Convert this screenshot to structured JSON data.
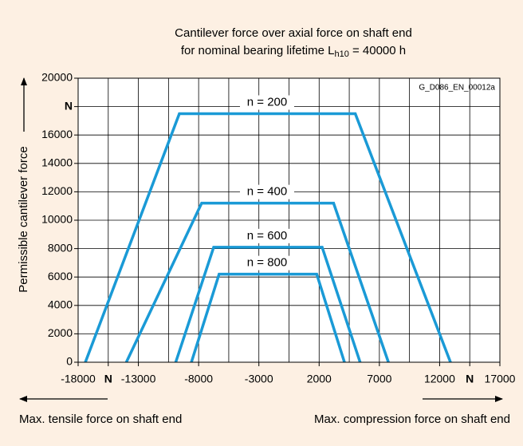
{
  "chart_data": {
    "type": "line",
    "title": "Cantilever force over axial force on shaft end",
    "subtitle": {
      "text": "for nominal bearing lifetime L",
      "sub": "h10",
      "tail": " = 40000 h"
    },
    "annotation": "G_D086_EN_00012a",
    "y_label": "Permissible cantilever force",
    "x_label_left": "Max. tensile force on shaft end",
    "x_label_right": "Max. compression force on shaft end",
    "xlim": [
      -18000,
      17000
    ],
    "ylim": [
      0,
      20000
    ],
    "xticks": [
      -18000,
      {
        "value": -15500,
        "label": "N"
      },
      -13000,
      -8000,
      -3000,
      2000,
      7000,
      12000,
      {
        "value": 14500,
        "label": "N"
      },
      17000
    ],
    "xgrid": [
      -15500,
      -13000,
      -10500,
      -8000,
      -5500,
      -3000,
      -500,
      2000,
      4500,
      7000,
      9500,
      12000,
      14500
    ],
    "yticks": [
      0,
      2000,
      4000,
      6000,
      8000,
      10000,
      12000,
      14000,
      16000,
      {
        "value": 18000,
        "label": "N"
      },
      20000
    ],
    "grid": true,
    "series": [
      {
        "name": "n = 200",
        "color": "#1a9ad6",
        "x": [
          -17400,
          -9600,
          5000,
          12900
        ],
        "values": [
          0,
          17500,
          17500,
          0
        ]
      },
      {
        "name": "n = 400",
        "color": "#1a9ad6",
        "x": [
          -14000,
          -7750,
          3200,
          7750
        ],
        "values": [
          0,
          11200,
          11200,
          0
        ]
      },
      {
        "name": "n = 600",
        "color": "#1a9ad6",
        "x": [
          -9900,
          -6750,
          2250,
          5400
        ],
        "values": [
          0,
          8100,
          8100,
          0
        ]
      },
      {
        "name": "n = 800",
        "color": "#1a9ad6",
        "x": [
          -8600,
          -6300,
          1800,
          4100
        ],
        "values": [
          0,
          6200,
          6200,
          0
        ]
      }
    ]
  }
}
